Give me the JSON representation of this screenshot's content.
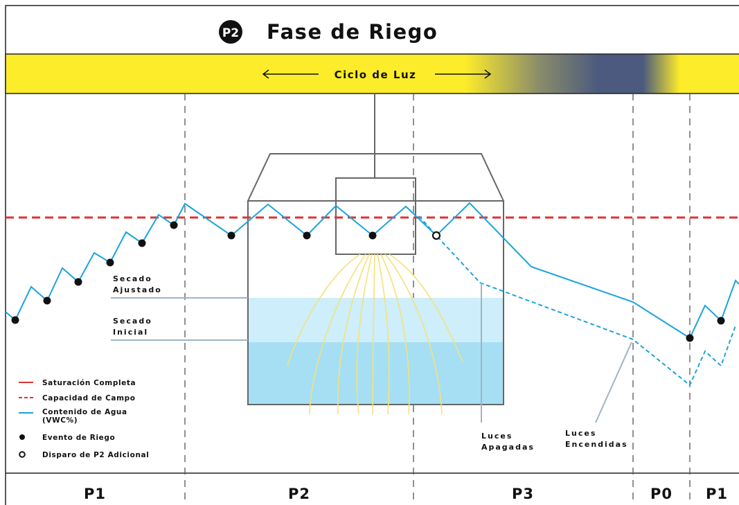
{
  "header": {
    "badge": "P2",
    "title": "Fase de Riego"
  },
  "light_bar": {
    "label": "Ciclo de Luz"
  },
  "annotations": {
    "secado_ajustado": [
      "Secado",
      "Ajustado"
    ],
    "secado_inicial": [
      "Secado",
      "Inicial"
    ],
    "luces_apagadas": [
      "Luces",
      "Apagadas"
    ],
    "luces_encendidas": [
      "Luces",
      "Encendidas"
    ]
  },
  "legend": [
    "Saturación Completa",
    "Capacidad de Campo",
    "Contenido de Agua",
    "(VWC%)",
    "Evento de Riego",
    "Disparo de P2 Adicional"
  ],
  "phases": [
    "P1",
    "P2",
    "P3",
    "P0",
    "P1"
  ]
}
